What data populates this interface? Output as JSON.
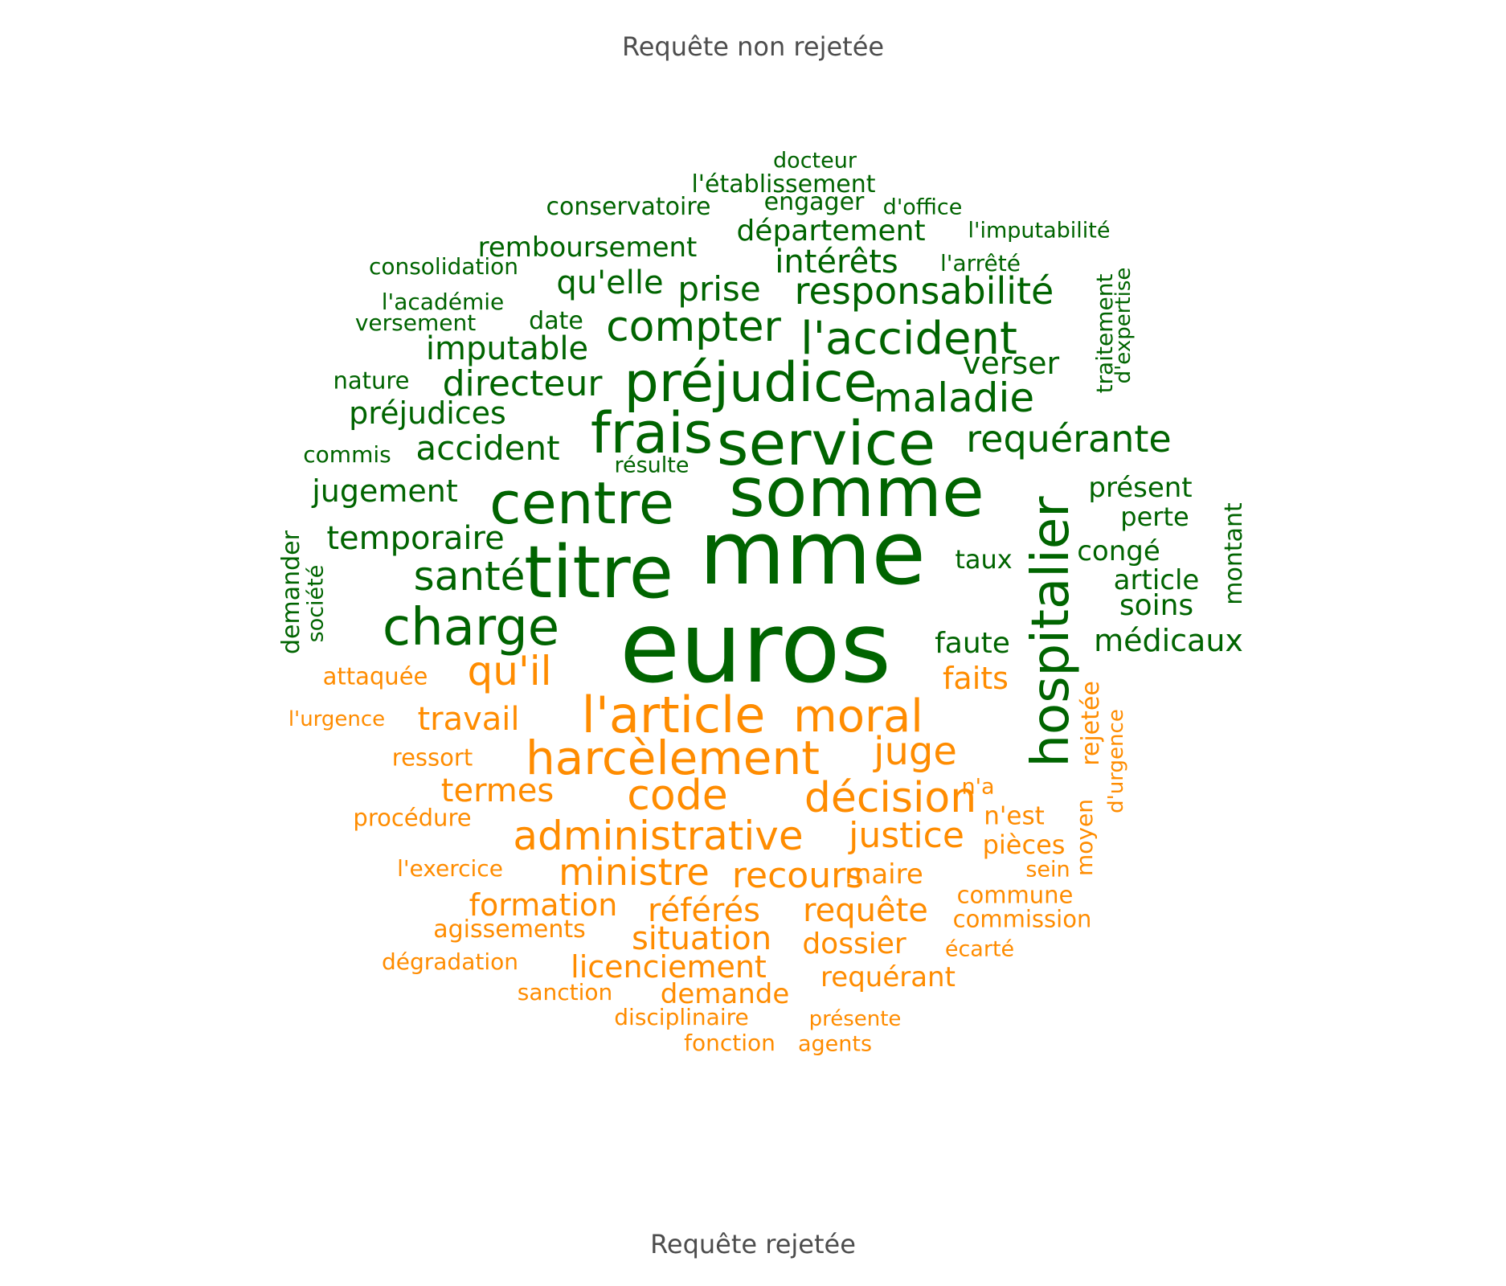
{
  "titles": {
    "top": "Requête non rejetée",
    "bottom": "Requête rejetée"
  },
  "colors": {
    "non_rejetee": "#006400",
    "rejetee": "#ff8c00",
    "title": "#4d4d4d",
    "background": "#ffffff"
  },
  "words": [
    {
      "text": "euros",
      "group": "non_rejetee",
      "vertical": false
    },
    {
      "text": "mme",
      "group": "non_rejetee",
      "vertical": false
    },
    {
      "text": "somme",
      "group": "non_rejetee",
      "vertical": false
    },
    {
      "text": "titre",
      "group": "non_rejetee",
      "vertical": false
    },
    {
      "text": "hospitalier",
      "group": "non_rejetee",
      "vertical": true
    },
    {
      "text": "service",
      "group": "non_rejetee",
      "vertical": false
    },
    {
      "text": "centre",
      "group": "non_rejetee",
      "vertical": false
    },
    {
      "text": "préjudice",
      "group": "non_rejetee",
      "vertical": false
    },
    {
      "text": "frais",
      "group": "non_rejetee",
      "vertical": false
    },
    {
      "text": "charge",
      "group": "non_rejetee",
      "vertical": false
    },
    {
      "text": "l'accident",
      "group": "non_rejetee",
      "vertical": false
    },
    {
      "text": "compter",
      "group": "non_rejetee",
      "vertical": false
    },
    {
      "text": "maladie",
      "group": "non_rejetee",
      "vertical": false
    },
    {
      "text": "santé",
      "group": "non_rejetee",
      "vertical": false
    },
    {
      "text": "responsabilité",
      "group": "non_rejetee",
      "vertical": false
    },
    {
      "text": "requérante",
      "group": "non_rejetee",
      "vertical": false
    },
    {
      "text": "directeur",
      "group": "non_rejetee",
      "vertical": false
    },
    {
      "text": "accident",
      "group": "non_rejetee",
      "vertical": false
    },
    {
      "text": "temporaire",
      "group": "non_rejetee",
      "vertical": false
    },
    {
      "text": "prise",
      "group": "non_rejetee",
      "vertical": false
    },
    {
      "text": "qu'elle",
      "group": "non_rejetee",
      "vertical": false
    },
    {
      "text": "imputable",
      "group": "non_rejetee",
      "vertical": false
    },
    {
      "text": "jugement",
      "group": "non_rejetee",
      "vertical": false
    },
    {
      "text": "préjudices",
      "group": "non_rejetee",
      "vertical": false
    },
    {
      "text": "intérêts",
      "group": "non_rejetee",
      "vertical": false
    },
    {
      "text": "verser",
      "group": "non_rejetee",
      "vertical": false
    },
    {
      "text": "département",
      "group": "non_rejetee",
      "vertical": false
    },
    {
      "text": "remboursement",
      "group": "non_rejetee",
      "vertical": false
    },
    {
      "text": "médicaux",
      "group": "non_rejetee",
      "vertical": false
    },
    {
      "text": "faute",
      "group": "non_rejetee",
      "vertical": false
    },
    {
      "text": "soins",
      "group": "non_rejetee",
      "vertical": false
    },
    {
      "text": "article",
      "group": "non_rejetee",
      "vertical": false
    },
    {
      "text": "congé",
      "group": "non_rejetee",
      "vertical": false
    },
    {
      "text": "perte",
      "group": "non_rejetee",
      "vertical": false
    },
    {
      "text": "présent",
      "group": "non_rejetee",
      "vertical": false
    },
    {
      "text": "taux",
      "group": "non_rejetee",
      "vertical": false
    },
    {
      "text": "engager",
      "group": "non_rejetee",
      "vertical": false
    },
    {
      "text": "l'établissement",
      "group": "non_rejetee",
      "vertical": false
    },
    {
      "text": "conservatoire",
      "group": "non_rejetee",
      "vertical": false
    },
    {
      "text": "l'arrêté",
      "group": "non_rejetee",
      "vertical": false
    },
    {
      "text": "l'imputabilité",
      "group": "non_rejetee",
      "vertical": false
    },
    {
      "text": "docteur",
      "group": "non_rejetee",
      "vertical": false
    },
    {
      "text": "d'office",
      "group": "non_rejetee",
      "vertical": false
    },
    {
      "text": "consolidation",
      "group": "non_rejetee",
      "vertical": false
    },
    {
      "text": "l'académie",
      "group": "non_rejetee",
      "vertical": false
    },
    {
      "text": "versement",
      "group": "non_rejetee",
      "vertical": false
    },
    {
      "text": "date",
      "group": "non_rejetee",
      "vertical": false
    },
    {
      "text": "nature",
      "group": "non_rejetee",
      "vertical": false
    },
    {
      "text": "commis",
      "group": "non_rejetee",
      "vertical": false
    },
    {
      "text": "résulte",
      "group": "non_rejetee",
      "vertical": false
    },
    {
      "text": "demander",
      "group": "non_rejetee",
      "vertical": true
    },
    {
      "text": "société",
      "group": "non_rejetee",
      "vertical": true
    },
    {
      "text": "traitement",
      "group": "non_rejetee",
      "vertical": true
    },
    {
      "text": "d'expertise",
      "group": "non_rejetee",
      "vertical": true
    },
    {
      "text": "montant",
      "group": "non_rejetee",
      "vertical": true
    },
    {
      "text": "l'article",
      "group": "rejetee",
      "vertical": false
    },
    {
      "text": "moral",
      "group": "rejetee",
      "vertical": false
    },
    {
      "text": "harcèlement",
      "group": "rejetee",
      "vertical": false
    },
    {
      "text": "qu'il",
      "group": "rejetee",
      "vertical": false
    },
    {
      "text": "code",
      "group": "rejetee",
      "vertical": false
    },
    {
      "text": "décision",
      "group": "rejetee",
      "vertical": false
    },
    {
      "text": "juge",
      "group": "rejetee",
      "vertical": false
    },
    {
      "text": "administrative",
      "group": "rejetee",
      "vertical": false
    },
    {
      "text": "justice",
      "group": "rejetee",
      "vertical": false
    },
    {
      "text": "ministre",
      "group": "rejetee",
      "vertical": false
    },
    {
      "text": "recours",
      "group": "rejetee",
      "vertical": false
    },
    {
      "text": "travail",
      "group": "rejetee",
      "vertical": false
    },
    {
      "text": "termes",
      "group": "rejetee",
      "vertical": false
    },
    {
      "text": "faits",
      "group": "rejetee",
      "vertical": false
    },
    {
      "text": "situation",
      "group": "rejetee",
      "vertical": false
    },
    {
      "text": "référés",
      "group": "rejetee",
      "vertical": false
    },
    {
      "text": "requête",
      "group": "rejetee",
      "vertical": false
    },
    {
      "text": "formation",
      "group": "rejetee",
      "vertical": false
    },
    {
      "text": "licenciement",
      "group": "rejetee",
      "vertical": false
    },
    {
      "text": "dossier",
      "group": "rejetee",
      "vertical": false
    },
    {
      "text": "demande",
      "group": "rejetee",
      "vertical": false
    },
    {
      "text": "requérant",
      "group": "rejetee",
      "vertical": false
    },
    {
      "text": "maire",
      "group": "rejetee",
      "vertical": false
    },
    {
      "text": "pièces",
      "group": "rejetee",
      "vertical": false
    },
    {
      "text": "n'est",
      "group": "rejetee",
      "vertical": false
    },
    {
      "text": "attaquée",
      "group": "rejetee",
      "vertical": false
    },
    {
      "text": "ressort",
      "group": "rejetee",
      "vertical": false
    },
    {
      "text": "procédure",
      "group": "rejetee",
      "vertical": false
    },
    {
      "text": "agissements",
      "group": "rejetee",
      "vertical": false
    },
    {
      "text": "commission",
      "group": "rejetee",
      "vertical": false
    },
    {
      "text": "commune",
      "group": "rejetee",
      "vertical": false
    },
    {
      "text": "l'exercice",
      "group": "rejetee",
      "vertical": false
    },
    {
      "text": "l'urgence",
      "group": "rejetee",
      "vertical": false
    },
    {
      "text": "dégradation",
      "group": "rejetee",
      "vertical": false
    },
    {
      "text": "sanction",
      "group": "rejetee",
      "vertical": false
    },
    {
      "text": "disciplinaire",
      "group": "rejetee",
      "vertical": false
    },
    {
      "text": "présente",
      "group": "rejetee",
      "vertical": false
    },
    {
      "text": "fonction",
      "group": "rejetee",
      "vertical": false
    },
    {
      "text": "agents",
      "group": "rejetee",
      "vertical": false
    },
    {
      "text": "écarté",
      "group": "rejetee",
      "vertical": false
    },
    {
      "text": "n'a",
      "group": "rejetee",
      "vertical": false
    },
    {
      "text": "sein",
      "group": "rejetee",
      "vertical": false
    },
    {
      "text": "rejetée",
      "group": "rejetee",
      "vertical": true
    },
    {
      "text": "d'urgence",
      "group": "rejetee",
      "vertical": true
    },
    {
      "text": "moyen",
      "group": "rejetee",
      "vertical": true
    }
  ]
}
